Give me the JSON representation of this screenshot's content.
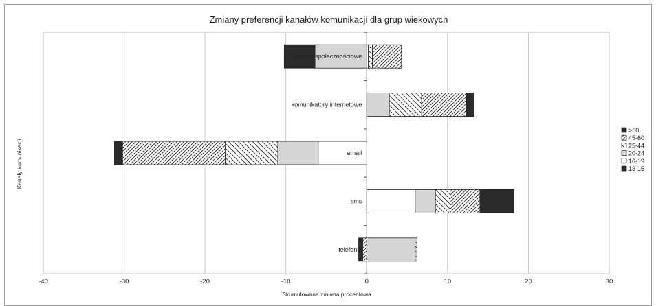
{
  "chart_data": {
    "type": "bar",
    "orientation": "horizontal",
    "stacked": "diverging",
    "title": "Zmiany preferencji kanałów komunikacji dla grup wiekowych",
    "xlabel": "Skumulowana zmiana procentowa",
    "ylabel": "Kanały komunikacji",
    "xlim": [
      -40,
      30
    ],
    "xticks": [
      -40,
      -30,
      -20,
      -10,
      0,
      10,
      20,
      30
    ],
    "grid": true,
    "legend_position": "right",
    "categories": [
      "portale społecznościowe",
      "komunikatory internetowe",
      "email",
      "sms",
      "telefonia"
    ],
    "series": [
      {
        "name": "13-15",
        "pattern": "solid-dark",
        "values": [
          0,
          0,
          0,
          0,
          0
        ]
      },
      {
        "name": "16-19",
        "pattern": "white",
        "values": [
          0.2,
          0,
          -6,
          6,
          0
        ]
      },
      {
        "name": "20-24",
        "pattern": "light-gray",
        "values": [
          -6.4,
          2.8,
          -5,
          2.5,
          6
        ]
      },
      {
        "name": "25-44",
        "pattern": "back-hatch",
        "values": [
          0.5,
          4,
          -6.5,
          1.8,
          0.2
        ]
      },
      {
        "name": "45-60",
        "pattern": "forward-hatch",
        "values": [
          3.6,
          5.5,
          -12.7,
          3.7,
          -0.5
        ]
      },
      {
        "name": ">60",
        "pattern": "solid-dark",
        "values": [
          -3.8,
          1,
          -1,
          4.2,
          -0.5
        ]
      }
    ]
  }
}
